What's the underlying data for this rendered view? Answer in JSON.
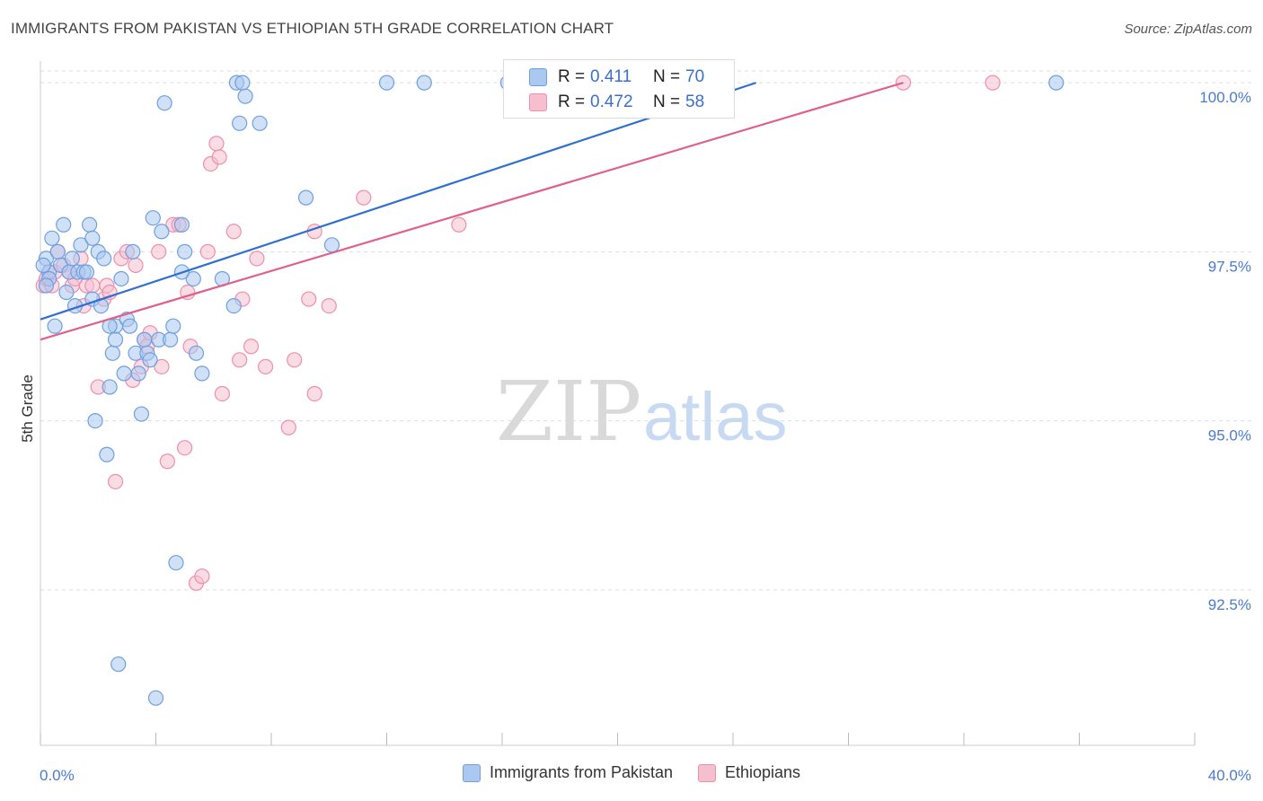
{
  "title": "IMMIGRANTS FROM PAKISTAN VS ETHIOPIAN 5TH GRADE CORRELATION CHART",
  "source": "Source: ZipAtlas.com",
  "watermark": {
    "zip": "ZIP",
    "atlas": "atlas"
  },
  "colors": {
    "blue_fill": "#aac8f0",
    "blue_stroke": "#6f9fe0",
    "blue_line": "#2f6fd0",
    "pink_fill": "#f6bfd0",
    "pink_stroke": "#ee8fab",
    "pink_line": "#e0608a",
    "grid": "#dddddd",
    "axis_text": "#4a7bd0"
  },
  "stats": {
    "r_label": "R =",
    "n_label": "N =",
    "pakistan": {
      "r": "0.411",
      "n": "70"
    },
    "ethiopians": {
      "r": "0.472",
      "n": "58"
    }
  },
  "chart_data": {
    "type": "scatter",
    "xlabel": "",
    "ylabel": "5th Grade",
    "xlim": [
      0,
      40
    ],
    "ylim": [
      90.2,
      100.4
    ],
    "x_tick_labels": [
      "0.0%",
      "40.0%"
    ],
    "y_ticks": [
      92.5,
      95.0,
      97.5,
      100.0
    ],
    "y_tick_labels": [
      "92.5%",
      "95.0%",
      "97.5%",
      "100.0%"
    ],
    "legend": [
      "Immigrants from Pakistan",
      "Ethiopians"
    ],
    "series": [
      {
        "name": "Immigrants from Pakistan",
        "trend": {
          "x0": 0,
          "y0": 96.5,
          "x1": 24.8,
          "y1": 100.0
        },
        "points": [
          [
            0.2,
            97.4
          ],
          [
            0.3,
            97.2
          ],
          [
            0.3,
            97.1
          ],
          [
            0.4,
            97.7
          ],
          [
            0.5,
            96.4
          ],
          [
            0.6,
            97.5
          ],
          [
            0.7,
            97.3
          ],
          [
            0.8,
            97.9
          ],
          [
            0.9,
            96.9
          ],
          [
            1.0,
            97.2
          ],
          [
            1.2,
            96.7
          ],
          [
            1.3,
            97.2
          ],
          [
            1.4,
            97.6
          ],
          [
            1.5,
            97.2
          ],
          [
            1.6,
            97.2
          ],
          [
            1.7,
            97.9
          ],
          [
            1.8,
            97.7
          ],
          [
            1.8,
            96.8
          ],
          [
            1.9,
            95.0
          ],
          [
            2.0,
            97.5
          ],
          [
            2.1,
            96.7
          ],
          [
            2.2,
            97.4
          ],
          [
            2.3,
            94.5
          ],
          [
            2.4,
            95.5
          ],
          [
            2.5,
            96.0
          ],
          [
            2.6,
            96.4
          ],
          [
            2.6,
            96.2
          ],
          [
            2.7,
            91.4
          ],
          [
            2.8,
            97.1
          ],
          [
            2.9,
            95.7
          ],
          [
            3.0,
            96.5
          ],
          [
            3.1,
            96.4
          ],
          [
            3.2,
            97.5
          ],
          [
            3.3,
            96.0
          ],
          [
            3.4,
            95.7
          ],
          [
            3.5,
            95.1
          ],
          [
            3.6,
            96.2
          ],
          [
            3.7,
            96.0
          ],
          [
            3.8,
            95.9
          ],
          [
            3.9,
            98.0
          ],
          [
            4.0,
            90.9
          ],
          [
            4.1,
            96.2
          ],
          [
            4.2,
            97.8
          ],
          [
            4.3,
            99.7
          ],
          [
            4.5,
            96.2
          ],
          [
            4.6,
            96.4
          ],
          [
            4.7,
            92.9
          ],
          [
            4.9,
            97.9
          ],
          [
            5.0,
            97.5
          ],
          [
            5.3,
            97.1
          ],
          [
            5.4,
            96.0
          ],
          [
            5.6,
            95.7
          ],
          [
            6.3,
            97.1
          ],
          [
            6.7,
            96.7
          ],
          [
            6.8,
            100.0
          ],
          [
            6.9,
            99.4
          ],
          [
            7.0,
            100.0
          ],
          [
            7.1,
            99.8
          ],
          [
            7.6,
            99.4
          ],
          [
            9.2,
            98.3
          ],
          [
            10.1,
            97.6
          ],
          [
            12.0,
            100.0
          ],
          [
            13.3,
            100.0
          ],
          [
            16.2,
            100.0
          ],
          [
            35.2,
            100.0
          ],
          [
            0.1,
            97.3
          ],
          [
            0.2,
            97.0
          ],
          [
            1.1,
            97.4
          ],
          [
            2.4,
            96.4
          ],
          [
            4.9,
            97.2
          ]
        ]
      },
      {
        "name": "Ethiopians",
        "trend": {
          "x0": 0,
          "y0": 96.2,
          "x1": 29.9,
          "y1": 100.0
        },
        "points": [
          [
            0.1,
            97.0
          ],
          [
            0.2,
            97.1
          ],
          [
            0.3,
            97.2
          ],
          [
            0.4,
            97.0
          ],
          [
            0.5,
            97.2
          ],
          [
            0.6,
            97.5
          ],
          [
            0.8,
            97.3
          ],
          [
            1.0,
            97.2
          ],
          [
            1.1,
            97.0
          ],
          [
            1.2,
            97.1
          ],
          [
            1.4,
            97.4
          ],
          [
            1.5,
            96.7
          ],
          [
            1.6,
            97.0
          ],
          [
            1.8,
            97.0
          ],
          [
            2.0,
            95.5
          ],
          [
            2.2,
            96.8
          ],
          [
            2.3,
            97.0
          ],
          [
            2.4,
            96.9
          ],
          [
            2.6,
            94.1
          ],
          [
            2.8,
            97.4
          ],
          [
            3.0,
            97.5
          ],
          [
            3.2,
            95.6
          ],
          [
            3.3,
            97.3
          ],
          [
            3.5,
            95.8
          ],
          [
            3.6,
            96.2
          ],
          [
            3.7,
            96.1
          ],
          [
            3.8,
            96.3
          ],
          [
            4.1,
            97.5
          ],
          [
            4.2,
            95.8
          ],
          [
            4.4,
            94.4
          ],
          [
            4.6,
            97.9
          ],
          [
            4.8,
            97.9
          ],
          [
            5.0,
            94.6
          ],
          [
            5.1,
            96.9
          ],
          [
            5.2,
            96.1
          ],
          [
            5.4,
            92.6
          ],
          [
            5.6,
            92.7
          ],
          [
            5.8,
            97.5
          ],
          [
            5.9,
            98.8
          ],
          [
            6.1,
            99.1
          ],
          [
            6.2,
            98.9
          ],
          [
            6.3,
            95.4
          ],
          [
            6.7,
            97.8
          ],
          [
            6.9,
            95.9
          ],
          [
            7.0,
            96.8
          ],
          [
            7.3,
            96.1
          ],
          [
            7.5,
            97.4
          ],
          [
            7.8,
            95.8
          ],
          [
            8.6,
            94.9
          ],
          [
            8.8,
            95.9
          ],
          [
            9.3,
            96.8
          ],
          [
            9.5,
            95.4
          ],
          [
            9.5,
            97.8
          ],
          [
            10.0,
            96.7
          ],
          [
            11.2,
            98.3
          ],
          [
            14.5,
            97.9
          ],
          [
            29.9,
            100.0
          ],
          [
            33.0,
            100.0
          ]
        ]
      }
    ]
  }
}
